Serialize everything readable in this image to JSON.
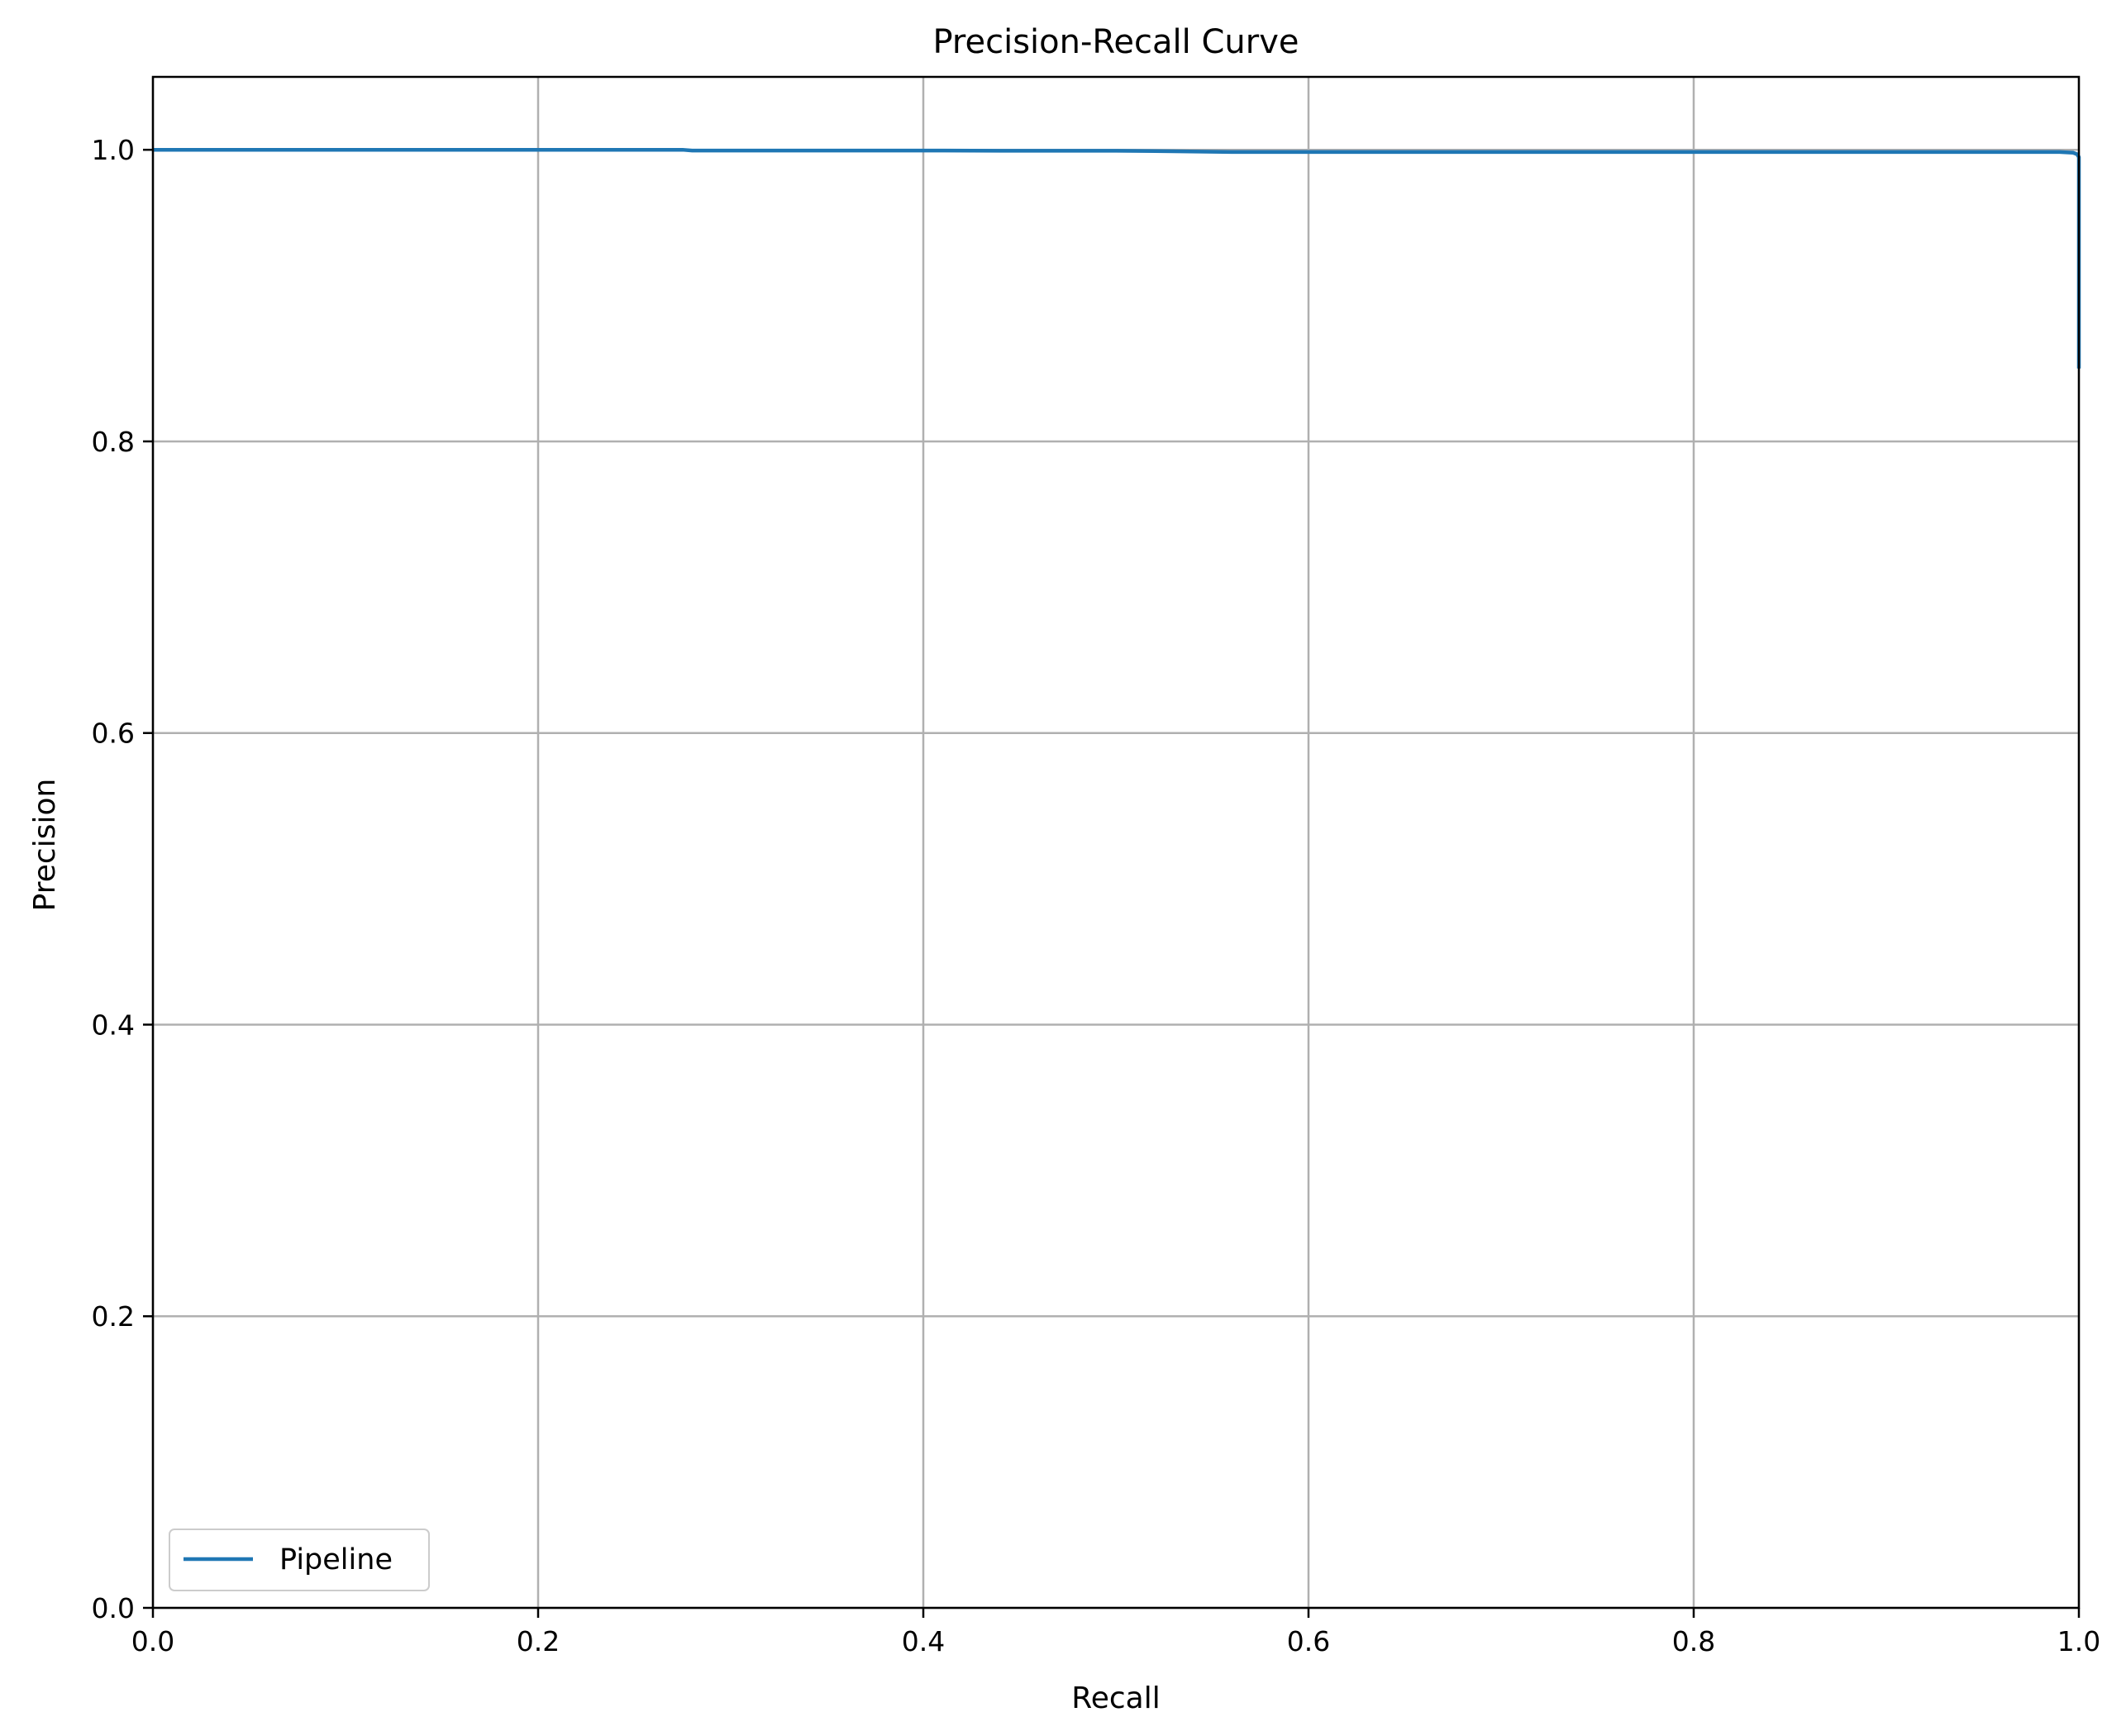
{
  "chart_data": {
    "type": "line",
    "title": "Precision-Recall Curve",
    "xlabel": "Recall",
    "ylabel": "Precision",
    "xlim": [
      0.0,
      1.0
    ],
    "ylim": [
      0.0,
      1.05
    ],
    "xticks": [
      "0.0",
      "0.2",
      "0.4",
      "0.6",
      "0.8",
      "1.0"
    ],
    "yticks": [
      "0.0",
      "0.2",
      "0.4",
      "0.6",
      "0.8",
      "1.0"
    ],
    "grid": true,
    "legend_position": "lower-left",
    "series": [
      {
        "name": "Pipeline",
        "color": "#1f77b4",
        "x": [
          0.0,
          0.1,
          0.2,
          0.275,
          0.28,
          0.4,
          0.44,
          0.5,
          0.53,
          0.56,
          0.6,
          0.7,
          0.8,
          0.9,
          0.99,
          0.997,
          0.999,
          1.0,
          1.0
        ],
        "y": [
          1.0,
          1.0,
          1.0,
          1.0,
          0.9995,
          0.9995,
          0.9993,
          0.9993,
          0.999,
          0.9985,
          0.9985,
          0.9985,
          0.9985,
          0.9985,
          0.9985,
          0.998,
          0.997,
          0.995,
          0.85
        ]
      }
    ]
  }
}
